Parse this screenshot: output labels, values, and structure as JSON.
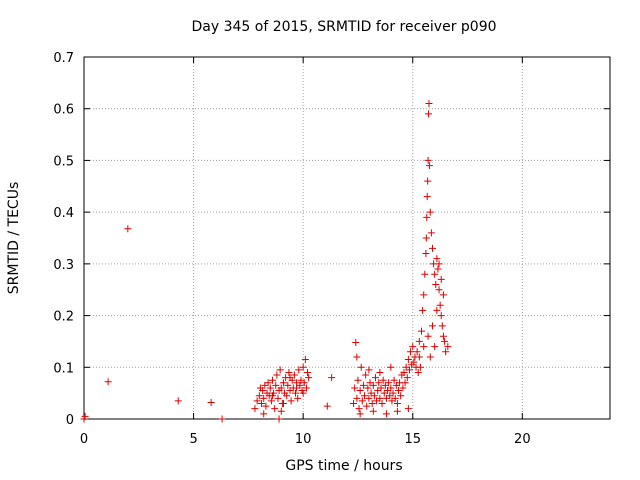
{
  "chart_data": {
    "type": "scatter",
    "title": "Day 345 of 2015, SRMTID for receiver p090",
    "xlabel": "GPS time / hours",
    "ylabel": "SRMTID / TECUs",
    "xlim": [
      0,
      24
    ],
    "ylim": [
      0,
      0.7
    ],
    "xticks": [
      0,
      5,
      10,
      15,
      20
    ],
    "yticks": [
      0,
      0.1,
      0.2,
      0.3,
      0.4,
      0.5,
      0.6,
      0.7
    ],
    "xtick_labels": [
      "0",
      "5",
      "10",
      "15",
      "20"
    ],
    "ytick_labels": [
      "0",
      "0.1",
      "0.2",
      "0.3",
      "0.4",
      "0.5",
      "0.6",
      "0.7"
    ],
    "grid": true,
    "marker": "+",
    "color": "#e00000",
    "series": [
      {
        "name": "SRMTID",
        "points": [
          [
            0.0,
            0.0
          ],
          [
            0.05,
            0.005
          ],
          [
            1.1,
            0.072
          ],
          [
            2.0,
            0.368
          ],
          [
            4.3,
            0.035
          ],
          [
            5.8,
            0.032
          ],
          [
            6.3,
            0.0
          ],
          [
            7.8,
            0.02
          ],
          [
            7.9,
            0.035
          ],
          [
            8.0,
            0.045
          ],
          [
            8.05,
            0.06
          ],
          [
            8.1,
            0.03
          ],
          [
            8.15,
            0.055
          ],
          [
            8.2,
            0.04
          ],
          [
            8.25,
            0.065
          ],
          [
            8.3,
            0.025
          ],
          [
            8.35,
            0.05
          ],
          [
            8.4,
            0.07
          ],
          [
            8.45,
            0.045
          ],
          [
            8.5,
            0.06
          ],
          [
            8.55,
            0.035
          ],
          [
            8.6,
            0.075
          ],
          [
            8.65,
            0.05
          ],
          [
            8.7,
            0.02
          ],
          [
            8.75,
            0.065
          ],
          [
            8.8,
            0.085
          ],
          [
            8.85,
            0.04
          ],
          [
            8.9,
            0.055
          ],
          [
            8.95,
            0.095
          ],
          [
            9.0,
            0.06
          ],
          [
            9.05,
            0.03
          ],
          [
            9.1,
            0.07
          ],
          [
            9.15,
            0.05
          ],
          [
            9.2,
            0.08
          ],
          [
            9.25,
            0.045
          ],
          [
            9.3,
            0.065
          ],
          [
            9.35,
            0.09
          ],
          [
            9.4,
            0.055
          ],
          [
            9.45,
            0.035
          ],
          [
            9.5,
            0.075
          ],
          [
            9.55,
            0.06
          ],
          [
            9.6,
            0.085
          ],
          [
            9.65,
            0.05
          ],
          [
            9.7,
            0.07
          ],
          [
            9.75,
            0.04
          ],
          [
            9.8,
            0.095
          ],
          [
            9.85,
            0.065
          ],
          [
            9.9,
            0.075
          ],
          [
            9.95,
            0.055
          ],
          [
            10.0,
            0.1
          ],
          [
            10.05,
            0.07
          ],
          [
            10.1,
            0.115
          ],
          [
            10.15,
            0.06
          ],
          [
            10.2,
            0.09
          ],
          [
            10.25,
            0.08
          ],
          [
            8.9,
            0.0
          ],
          [
            8.6,
            0.045
          ],
          [
            9.1,
            0.03
          ],
          [
            9.4,
            0.08
          ],
          [
            9.7,
            0.06
          ],
          [
            10.0,
            0.05
          ],
          [
            11.1,
            0.025
          ],
          [
            11.3,
            0.08
          ],
          [
            12.3,
            0.03
          ],
          [
            12.35,
            0.06
          ],
          [
            12.4,
            0.148
          ],
          [
            12.45,
            0.04
          ],
          [
            12.5,
            0.075
          ],
          [
            12.55,
            0.02
          ],
          [
            12.6,
            0.055
          ],
          [
            12.65,
            0.1
          ],
          [
            12.7,
            0.035
          ],
          [
            12.75,
            0.065
          ],
          [
            12.8,
            0.045
          ],
          [
            12.85,
            0.085
          ],
          [
            12.9,
            0.025
          ],
          [
            12.95,
            0.06
          ],
          [
            13.0,
            0.04
          ],
          [
            13.05,
            0.07
          ],
          [
            13.1,
            0.05
          ],
          [
            13.15,
            0.03
          ],
          [
            13.2,
            0.065
          ],
          [
            13.25,
            0.045
          ],
          [
            13.3,
            0.08
          ],
          [
            13.35,
            0.035
          ],
          [
            13.4,
            0.055
          ],
          [
            13.45,
            0.07
          ],
          [
            13.5,
            0.04
          ],
          [
            13.55,
            0.06
          ],
          [
            13.6,
            0.03
          ],
          [
            13.65,
            0.075
          ],
          [
            13.7,
            0.05
          ],
          [
            13.75,
            0.065
          ],
          [
            13.8,
            0.04
          ],
          [
            13.85,
            0.055
          ],
          [
            13.9,
            0.07
          ],
          [
            13.95,
            0.045
          ],
          [
            14.0,
            0.06
          ],
          [
            14.05,
            0.035
          ],
          [
            14.1,
            0.05
          ],
          [
            14.15,
            0.075
          ],
          [
            14.2,
            0.04
          ],
          [
            14.25,
            0.065
          ],
          [
            14.3,
            0.03
          ],
          [
            14.35,
            0.055
          ],
          [
            14.4,
            0.07
          ],
          [
            14.45,
            0.045
          ],
          [
            14.5,
            0.085
          ],
          [
            14.55,
            0.06
          ],
          [
            14.6,
            0.09
          ],
          [
            14.65,
            0.07
          ],
          [
            14.7,
            0.1
          ],
          [
            14.75,
            0.08
          ],
          [
            14.8,
            0.115
          ],
          [
            14.85,
            0.095
          ],
          [
            14.9,
            0.13
          ],
          [
            14.95,
            0.105
          ],
          [
            15.0,
            0.14
          ],
          [
            15.05,
            0.11
          ],
          [
            15.1,
            0.12
          ],
          [
            15.15,
            0.1
          ],
          [
            15.2,
            0.13
          ],
          [
            15.25,
            0.09
          ],
          [
            15.3,
            0.15
          ],
          [
            15.35,
            0.1
          ],
          [
            15.4,
            0.17
          ],
          [
            15.45,
            0.21
          ],
          [
            15.5,
            0.24
          ],
          [
            15.55,
            0.28
          ],
          [
            15.6,
            0.32
          ],
          [
            15.62,
            0.35
          ],
          [
            15.64,
            0.39
          ],
          [
            15.66,
            0.43
          ],
          [
            15.68,
            0.46
          ],
          [
            15.7,
            0.5
          ],
          [
            15.72,
            0.59
          ],
          [
            15.74,
            0.61
          ],
          [
            15.76,
            0.49
          ],
          [
            15.8,
            0.4
          ],
          [
            15.85,
            0.36
          ],
          [
            15.9,
            0.33
          ],
          [
            15.95,
            0.3
          ],
          [
            16.0,
            0.28
          ],
          [
            16.05,
            0.26
          ],
          [
            16.1,
            0.31
          ],
          [
            16.15,
            0.29
          ],
          [
            16.2,
            0.25
          ],
          [
            16.25,
            0.22
          ],
          [
            16.3,
            0.2
          ],
          [
            16.35,
            0.18
          ],
          [
            16.4,
            0.16
          ],
          [
            16.45,
            0.15
          ],
          [
            16.5,
            0.13
          ],
          [
            16.3,
            0.27
          ],
          [
            16.1,
            0.21
          ],
          [
            15.9,
            0.18
          ],
          [
            15.7,
            0.16
          ],
          [
            15.5,
            0.14
          ],
          [
            15.3,
            0.12
          ],
          [
            16.4,
            0.24
          ],
          [
            16.2,
            0.3
          ],
          [
            12.6,
            0.01
          ],
          [
            13.2,
            0.015
          ],
          [
            13.8,
            0.01
          ],
          [
            14.3,
            0.015
          ],
          [
            14.8,
            0.02
          ],
          [
            9.0,
            0.015
          ],
          [
            8.2,
            0.01
          ],
          [
            12.45,
            0.12
          ],
          [
            13.0,
            0.095
          ],
          [
            13.5,
            0.09
          ],
          [
            14.0,
            0.1
          ],
          [
            15.8,
            0.12
          ],
          [
            16.0,
            0.14
          ],
          [
            16.6,
            0.14
          ]
        ]
      }
    ]
  }
}
